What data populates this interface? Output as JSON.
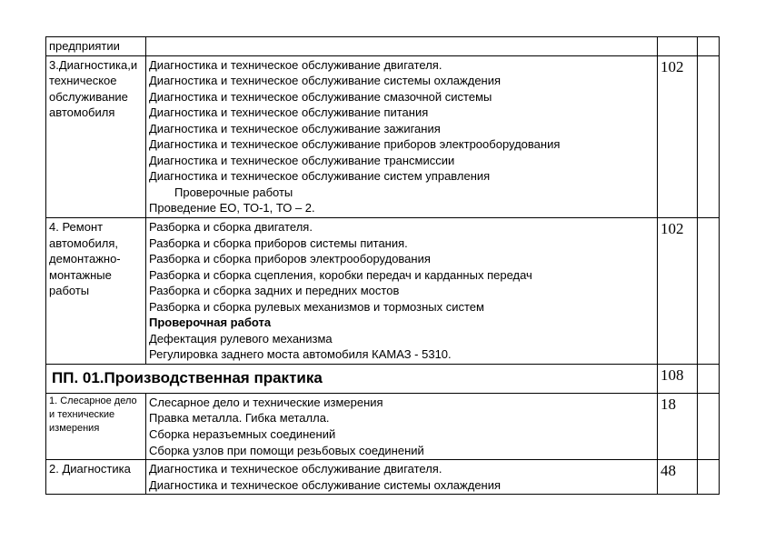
{
  "rows": {
    "r0": {
      "col1": "предприятии"
    },
    "r1": {
      "col1": "3.Диагностика,и техническое обслуживание автомобиля",
      "lines": [
        "Диагностика и техническое обслуживание двигателя.",
        "Диагностика и техническое обслуживание  системы охлаждения",
        "Диагностика и техническое обслуживание  смазочной системы",
        "Диагностика и техническое обслуживание  питания",
        "Диагностика и техническое обслуживание  зажигания",
        "Диагностика и техническое обслуживание  приборов электрооборудования",
        "Диагностика и техническое обслуживание  трансмиссии",
        "Диагностика и техническое обслуживание  систем управления"
      ],
      "indent_line": "Проверочные работы",
      "last_line": "Проведение ЕО, ТО-1, ТО – 2.",
      "hours": "102"
    },
    "r2": {
      "col1": "4. Ремонт автомобиля, демонтажно-монтажные работы",
      "lines": [
        "Разборка и сборка двигателя.",
        "Разборка и сборка приборов системы питания.",
        "Разборка и сборка  приборов электрооборудования",
        "Разборка и сборка  сцепления,  коробки передач и карданных передач",
        "Разборка и сборка  задних и передних мостов",
        "Разборка и сборка  рулевых механизмов и тормозных систем"
      ],
      "bold_line": "Проверочная работа",
      "tail": [
        "Дефектация рулевого механизма",
        "Регулировка заднего моста автомобиля КАМАЗ - 5310."
      ],
      "hours": "102"
    },
    "section": {
      "title": "ПП. 01.Производственная практика",
      "hours": "108"
    },
    "r3": {
      "col1": "1.  Слесарное дело и технические измерения",
      "lines": [
        "Слесарное дело и технические измерения",
        "Правка металла. Гибка металла.",
        "Сборка неразъемных соединений",
        "Сборка узлов при помощи резьбовых соединений"
      ],
      "hours": "18"
    },
    "r4": {
      "col1": "2. Диагностика",
      "lines": [
        "Диагностика и техническое обслуживание двигателя.",
        "Диагностика и техническое обслуживание  системы охлаждения"
      ],
      "hours": "48"
    }
  }
}
